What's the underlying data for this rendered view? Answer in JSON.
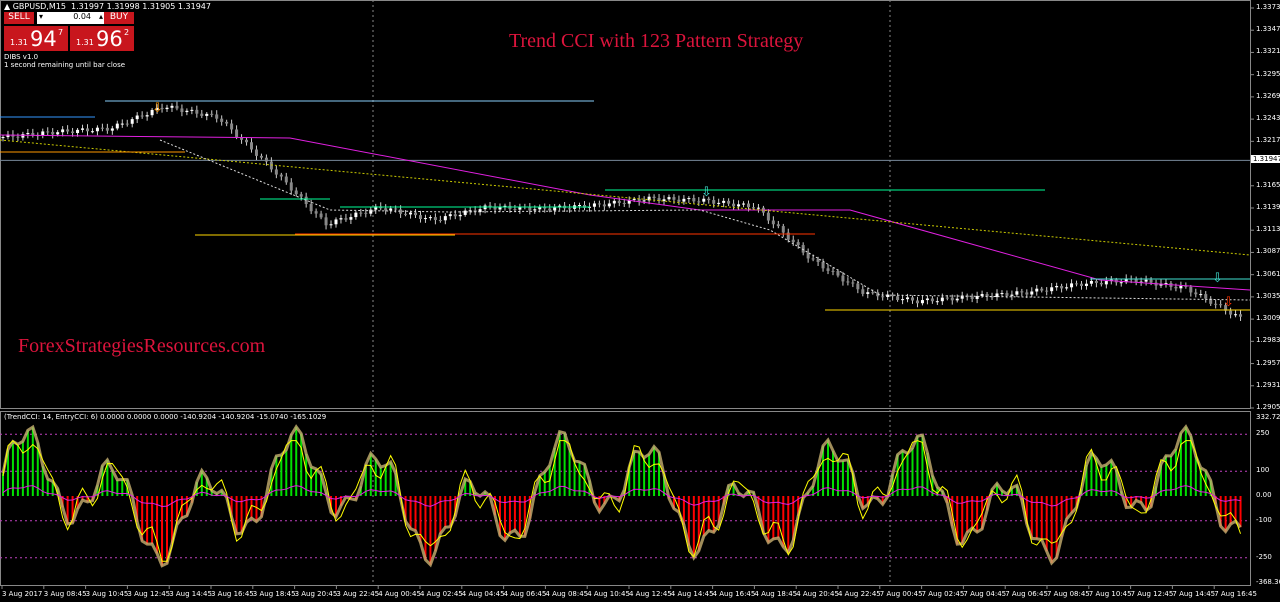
{
  "symbol_header": {
    "symbol": "GBPUSD,M15",
    "quote": "1.31997 1.31998 1.31905 1.31947"
  },
  "trade_panel": {
    "sell_label": "SELL",
    "buy_label": "BUY",
    "lot": "0.04",
    "sell_price": {
      "prefix": "1.31",
      "big": "94",
      "sup": "7"
    },
    "buy_price": {
      "prefix": "1.31",
      "big": "96",
      "sup": "2"
    }
  },
  "info_lines": [
    "DIBS v1.0",
    "1 second remaining until bar close"
  ],
  "chart_title": "Trend CCI with 123 Pattern Strategy",
  "watermark": "ForexStrategiesResources.com",
  "colors": {
    "title": "#dc143c",
    "bull": "#00e000",
    "bear": "#ff0000",
    "ma": "#e020e0",
    "entry_cci": "#ffff00"
  },
  "price_axis": {
    "labels": [
      "1.33730",
      "1.33470",
      "1.33210",
      "1.32950",
      "1.32690",
      "1.32430",
      "1.32170",
      "1.31650",
      "1.31390",
      "1.31130",
      "1.30870",
      "1.30610",
      "1.30350",
      "1.30090",
      "1.29830",
      "1.29570",
      "1.29310",
      "1.29050"
    ],
    "current_price": "1.31947"
  },
  "indicator": {
    "header": "(TrendCCI: 14, EntryCCI: 6)  0.0000 0.0000 0.0000 -140.9204 -140.9204 -15.0740 -165.1029",
    "axis_labels": [
      "332.7241",
      "250",
      "100",
      "0.00",
      "-100",
      "-250",
      "-368.3699"
    ]
  },
  "time_axis": [
    "3 Aug 2017",
    "3 Aug 08:45",
    "3 Aug 10:45",
    "3 Aug 12:45",
    "3 Aug 14:45",
    "3 Aug 16:45",
    "3 Aug 18:45",
    "3 Aug 20:45",
    "3 Aug 22:45",
    "4 Aug 00:45",
    "4 Aug 02:45",
    "4 Aug 04:45",
    "4 Aug 06:45",
    "4 Aug 08:45",
    "4 Aug 10:45",
    "4 Aug 12:45",
    "4 Aug 14:45",
    "4 Aug 16:45",
    "4 Aug 18:45",
    "4 Aug 20:45",
    "4 Aug 22:45",
    "7 Aug 00:45",
    "7 Aug 02:45",
    "7 Aug 04:45",
    "7 Aug 06:45",
    "7 Aug 08:45",
    "7 Aug 10:45",
    "7 Aug 12:45",
    "7 Aug 14:45",
    "7 Aug 16:45"
  ],
  "chart_data": {
    "type": "candlestick",
    "price_range": [
      1.2905,
      1.3373
    ],
    "close_path": [
      1.3222,
      1.3228,
      1.3232,
      1.3258,
      1.3245,
      1.3185,
      1.312,
      1.314,
      1.3125,
      1.314,
      1.3138,
      1.3142,
      1.315,
      1.3148,
      1.314,
      1.308,
      1.304,
      1.303,
      1.3035,
      1.304,
      1.305,
      1.3055,
      1.3045,
      1.301
    ]
  }
}
